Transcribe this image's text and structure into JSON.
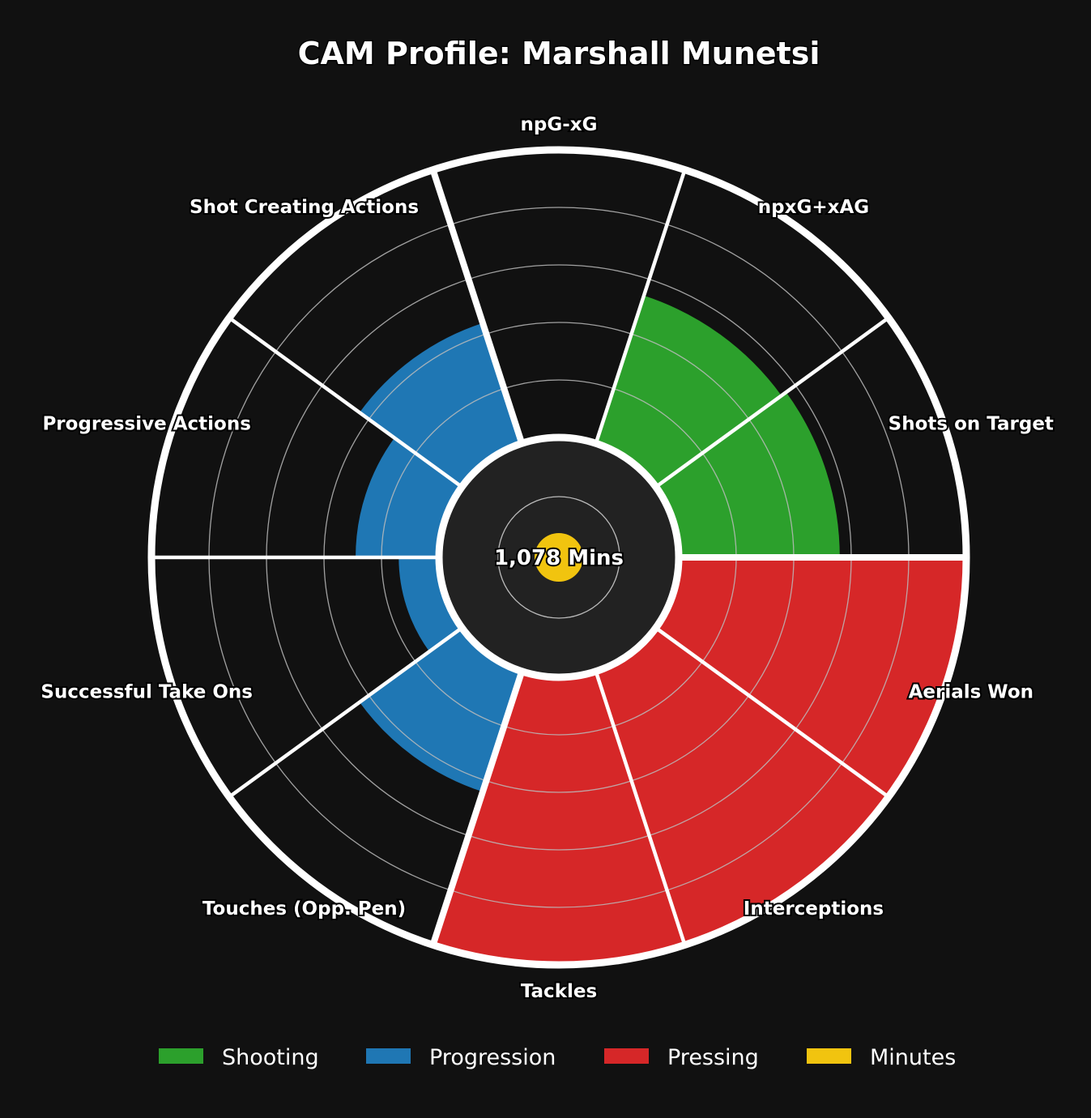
{
  "chart_data": {
    "type": "polar-bar",
    "title": "CAM Profile: Marshall Munetsi",
    "center_label": "1,078 Mins",
    "scale_max": 100,
    "minutes_percentile": 8,
    "categories": [
      {
        "label": "npG-xG",
        "group": "Shooting",
        "value": 0
      },
      {
        "label": "npxG+xAG",
        "group": "Shooting",
        "value": 54
      },
      {
        "label": "Shots on Target",
        "group": "Shooting",
        "value": 56
      },
      {
        "label": "Aerials Won",
        "group": "Pressing",
        "value": 99
      },
      {
        "label": "Interceptions",
        "group": "Pressing",
        "value": 99
      },
      {
        "label": "Tackles",
        "group": "Pressing",
        "value": 99
      },
      {
        "label": "Touches (Opp. Pen)",
        "group": "Progression",
        "value": 44
      },
      {
        "label": "Successful Take Ons",
        "group": "Progression",
        "value": 14
      },
      {
        "label": "Progressive Actions",
        "group": "Progression",
        "value": 29
      },
      {
        "label": "Shot Creating Actions",
        "group": "Progression",
        "value": 44
      }
    ],
    "legend": [
      {
        "name": "Shooting",
        "color": "#2ca02c"
      },
      {
        "name": "Progression",
        "color": "#1f77b4"
      },
      {
        "name": "Pressing",
        "color": "#d62728"
      },
      {
        "name": "Minutes",
        "color": "#f1c40f"
      }
    ],
    "legend_placement": "bottom",
    "grid": true
  }
}
